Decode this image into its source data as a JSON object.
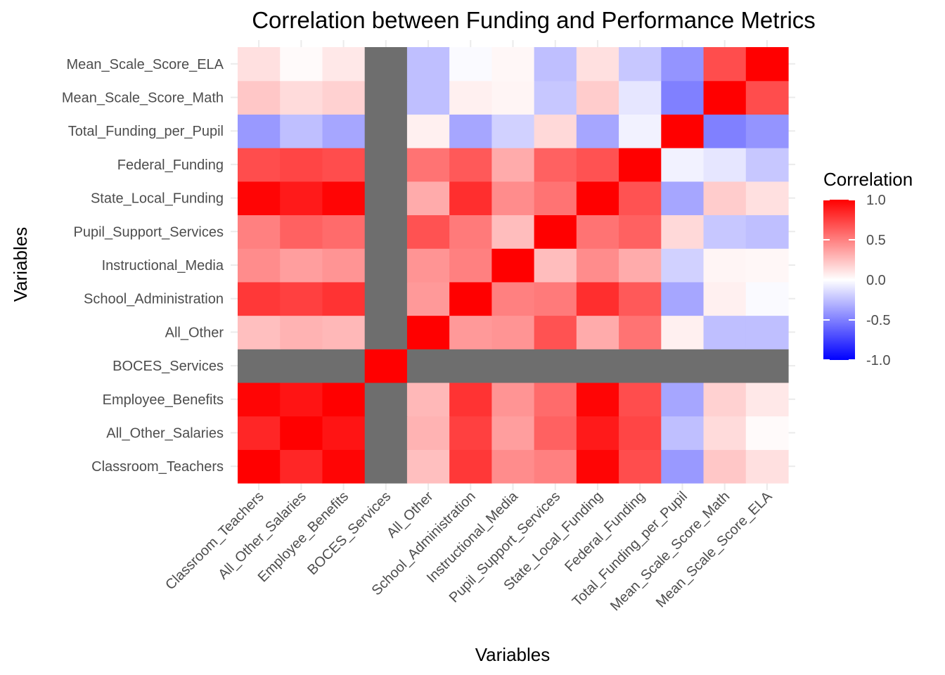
{
  "chart_data": {
    "type": "heatmap",
    "title": "Correlation between Funding and Performance Metrics",
    "xlabel": "Variables",
    "ylabel": "Variables",
    "variables": [
      "Classroom_Teachers",
      "All_Other_Salaries",
      "Employee_Benefits",
      "BOCES_Services",
      "All_Other",
      "School_Administration",
      "Instructional_Media",
      "Pupil_Support_Services",
      "State_Local_Funding",
      "Federal_Funding",
      "Total_Funding_per_Pupil",
      "Mean_Scale_Score_Math",
      "Mean_Scale_Score_ELA"
    ],
    "matrix": [
      [
        1.0,
        0.85,
        0.98,
        null,
        0.25,
        0.78,
        0.45,
        0.5,
        0.98,
        0.7,
        -0.4,
        0.22,
        0.12
      ],
      [
        0.85,
        1.0,
        0.92,
        null,
        0.3,
        0.75,
        0.38,
        0.62,
        0.9,
        0.73,
        -0.25,
        0.14,
        0.02
      ],
      [
        0.98,
        0.92,
        1.0,
        null,
        0.28,
        0.8,
        0.42,
        0.58,
        0.98,
        0.7,
        -0.35,
        0.18,
        0.09
      ],
      [
        null,
        null,
        null,
        1.0,
        null,
        null,
        null,
        null,
        null,
        null,
        null,
        null,
        null
      ],
      [
        0.25,
        0.3,
        0.28,
        null,
        1.0,
        0.4,
        0.42,
        0.68,
        0.33,
        0.55,
        0.06,
        -0.25,
        -0.25
      ],
      [
        0.78,
        0.75,
        0.8,
        null,
        0.4,
        1.0,
        0.5,
        0.52,
        0.82,
        0.65,
        -0.35,
        0.06,
        -0.02
      ],
      [
        0.45,
        0.38,
        0.42,
        null,
        0.42,
        0.5,
        1.0,
        0.26,
        0.45,
        0.33,
        -0.18,
        0.04,
        0.03
      ],
      [
        0.5,
        0.62,
        0.58,
        null,
        0.68,
        0.52,
        0.26,
        1.0,
        0.55,
        0.62,
        0.15,
        -0.22,
        -0.25
      ],
      [
        0.98,
        0.9,
        0.98,
        null,
        0.33,
        0.82,
        0.45,
        0.55,
        1.0,
        0.68,
        -0.35,
        0.2,
        0.12
      ],
      [
        0.7,
        0.73,
        0.7,
        null,
        0.55,
        0.65,
        0.33,
        0.62,
        0.68,
        1.0,
        -0.05,
        -0.1,
        -0.22
      ],
      [
        -0.4,
        -0.25,
        -0.35,
        null,
        0.06,
        -0.35,
        -0.18,
        0.15,
        -0.35,
        -0.05,
        1.0,
        -0.5,
        -0.42
      ],
      [
        0.22,
        0.14,
        0.18,
        null,
        -0.25,
        0.06,
        0.04,
        -0.22,
        0.2,
        -0.1,
        -0.5,
        1.0,
        0.7
      ],
      [
        0.12,
        0.02,
        0.09,
        null,
        -0.25,
        -0.02,
        0.03,
        -0.25,
        0.12,
        -0.22,
        -0.42,
        0.7,
        1.0
      ]
    ],
    "na_color": "#6e6e6e",
    "color_scale": {
      "low": "#0000ff",
      "mid": "#ffffff",
      "high": "#ff0000",
      "limits": [
        -1,
        1
      ]
    },
    "legend": {
      "title": "Correlation",
      "ticks": [
        "1.0",
        "0.5",
        "0.0",
        "-0.5",
        "-1.0"
      ],
      "tick_values": [
        1.0,
        0.5,
        0.0,
        -0.5,
        -1.0
      ],
      "position": "right"
    },
    "grid": true
  }
}
